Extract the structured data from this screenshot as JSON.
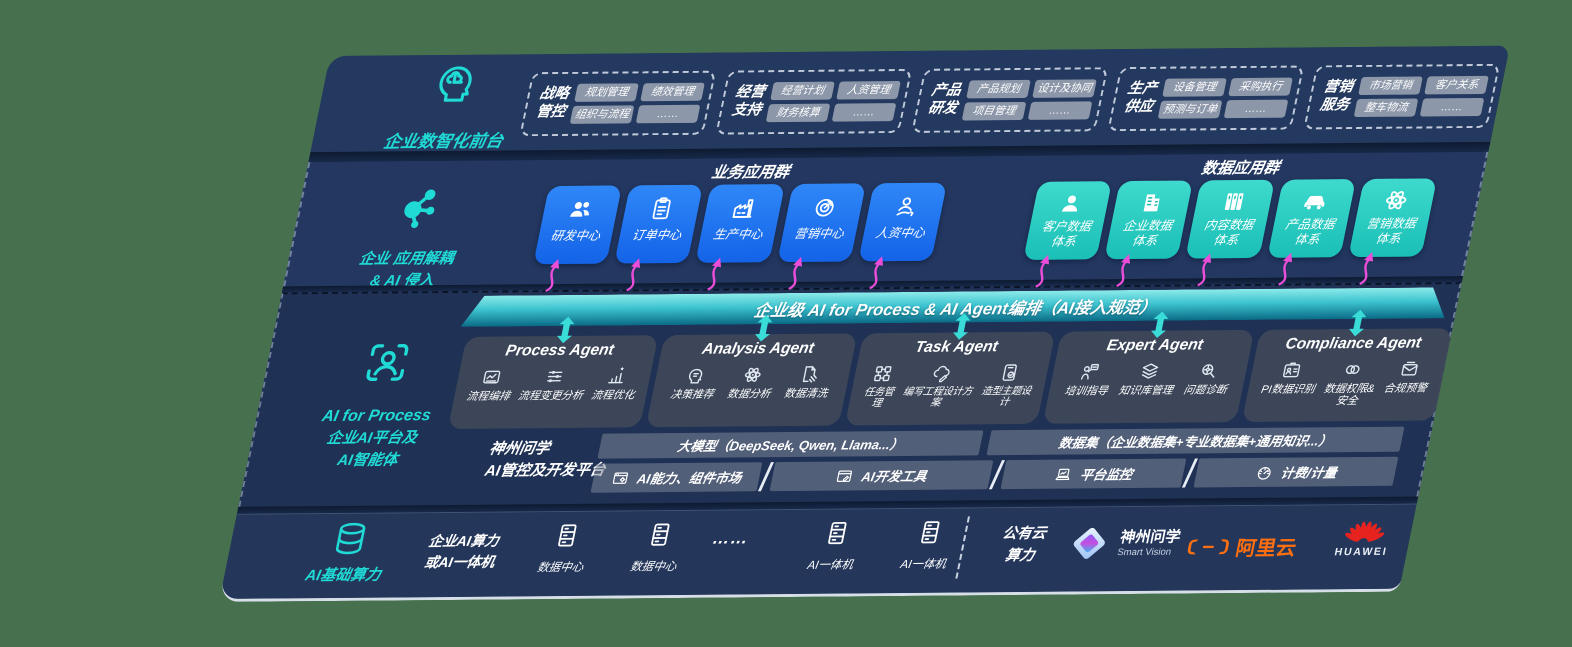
{
  "page": {
    "background": "#47704e"
  },
  "colors": {
    "panel": "#223457",
    "accent_teal": "#20dbd5",
    "tile_blue": "#1a73f0",
    "tile_teal": "#2fd3c8",
    "arrow_magenta": "#ea4ed8",
    "bar_teal_top": "#8deaea",
    "bar_teal_bottom": "#0a6a86",
    "aliyun_orange": "#ff6f10",
    "huawei_red": "#e6231e"
  },
  "front_layer": {
    "label": "企业数智化前台",
    "icon": "brain-head-icon",
    "groups": [
      {
        "title_line1": "战略",
        "title_line2": "管控",
        "items": [
          "规划管理",
          "绩效管理",
          "组织与流程",
          "……"
        ]
      },
      {
        "title_line1": "经营",
        "title_line2": "支持",
        "items": [
          "经营计划",
          "人资管理",
          "财务核算",
          "……"
        ]
      },
      {
        "title_line1": "产品",
        "title_line2": "研发",
        "items": [
          "产品规划",
          "设计及协同",
          "项目管理",
          "……"
        ]
      },
      {
        "title_line1": "生产",
        "title_line2": "供应",
        "items": [
          "设备管理",
          "采购执行",
          "预测与订单",
          "……"
        ]
      },
      {
        "title_line1": "营销",
        "title_line2": "服务",
        "items": [
          "市场营销",
          "客户关系",
          "整车物流",
          "……"
        ]
      }
    ]
  },
  "apps_layer": {
    "label_line1": "企业 应用解耦",
    "label_line2": "& AI 侵入",
    "icon": "molecule-icon",
    "business_group": {
      "title": "业务应用群",
      "tiles": [
        {
          "label": "研发中心",
          "icon": "team-icon"
        },
        {
          "label": "订单中心",
          "icon": "clipboard-icon"
        },
        {
          "label": "生产中心",
          "icon": "factory-icon"
        },
        {
          "label": "营销中心",
          "icon": "target-icon"
        },
        {
          "label": "人资中心",
          "icon": "hr-icon"
        }
      ]
    },
    "data_group": {
      "title": "数据应用群",
      "tiles": [
        {
          "label": "客户数据\n体系",
          "icon": "user-icon"
        },
        {
          "label": "企业数据\n体系",
          "icon": "building-icon"
        },
        {
          "label": "内容数据\n体系",
          "icon": "books-icon"
        },
        {
          "label": "产品数据\n体系",
          "icon": "car-icon"
        },
        {
          "label": "营销数据\n体系",
          "icon": "atom-icon"
        }
      ]
    }
  },
  "orchestration_bar": {
    "label": "企业级 AI for Process & AI Agent编排（AI接入规范）"
  },
  "agent_layer": {
    "label_line1": "AI for Process",
    "label_line2": "企业AI平台及",
    "label_line3": "AI智能体",
    "icon": "scan-person-icon",
    "agents": [
      {
        "title": "Process Agent",
        "items": [
          {
            "label": "流程编排",
            "icon": "flow-chart-icon"
          },
          {
            "label": "流程变更分析",
            "icon": "sliders-icon"
          },
          {
            "label": "流程优化",
            "icon": "optimize-icon"
          }
        ]
      },
      {
        "title": "Analysis Agent",
        "items": [
          {
            "label": "决策推荐",
            "icon": "head-chat-icon"
          },
          {
            "label": "数据分析",
            "icon": "atom-icon"
          },
          {
            "label": "数据清洗",
            "icon": "clean-doc-icon"
          }
        ]
      },
      {
        "title": "Task Agent",
        "items": [
          {
            "label": "任务管理",
            "icon": "task-grid-icon"
          },
          {
            "label": "编写工程设计方案",
            "icon": "cloud-pen-icon"
          },
          {
            "label": "造型主题设计",
            "icon": "tablet-check-icon"
          }
        ]
      },
      {
        "title": "Expert Agent",
        "items": [
          {
            "label": "培训指导",
            "icon": "trainer-icon"
          },
          {
            "label": "知识库管理",
            "icon": "layers-icon"
          },
          {
            "label": "问题诊断",
            "icon": "diagnose-icon"
          }
        ]
      },
      {
        "title": "Compliance Agent",
        "items": [
          {
            "label": "PI数据识别",
            "icon": "id-card-icon"
          },
          {
            "label": "数据权限&\n安全",
            "icon": "rings-icon"
          },
          {
            "label": "合规预警",
            "icon": "alert-mail-icon"
          }
        ]
      }
    ],
    "platform": {
      "label_line1": "神州问学",
      "label_line2": "AI管控及开发平台",
      "model_bar": "大模型（DeepSeek, Qwen, Llama...）",
      "dataset_bar": "数据集（企业数据集+专业数据集+通用知识...）",
      "cells": [
        {
          "label": "AI能力、组件市场",
          "icon": "window-gear-icon"
        },
        {
          "label": "AI开发工具",
          "icon": "window-pen-icon"
        },
        {
          "label": "平台监控",
          "icon": "laptop-chart-icon"
        },
        {
          "label": "计费/计量",
          "icon": "gauge-icon"
        }
      ]
    }
  },
  "infra_layer": {
    "label": "AI基础算力",
    "icon": "database-icon",
    "compute_line1": "企业AI算力",
    "compute_line2": "或AI一体机",
    "nodes": [
      {
        "label": "数据中心",
        "icon": "server-icon"
      },
      {
        "label": "数据中心",
        "icon": "server-icon"
      },
      {
        "label": "…… ",
        "icon": null
      },
      {
        "label": "AI一体机",
        "icon": "server-icon"
      },
      {
        "label": "AI一体机",
        "icon": "server-icon"
      }
    ],
    "cloud_line1": "公有云",
    "cloud_line2": "算力",
    "partners": [
      {
        "name": "神州问学",
        "sub": "Smart Vision",
        "icon": "smartvision-logo"
      },
      {
        "name": "阿里云",
        "icon": "aliyun-logo"
      },
      {
        "name": "HUAWEI",
        "icon": "huawei-logo"
      }
    ]
  }
}
